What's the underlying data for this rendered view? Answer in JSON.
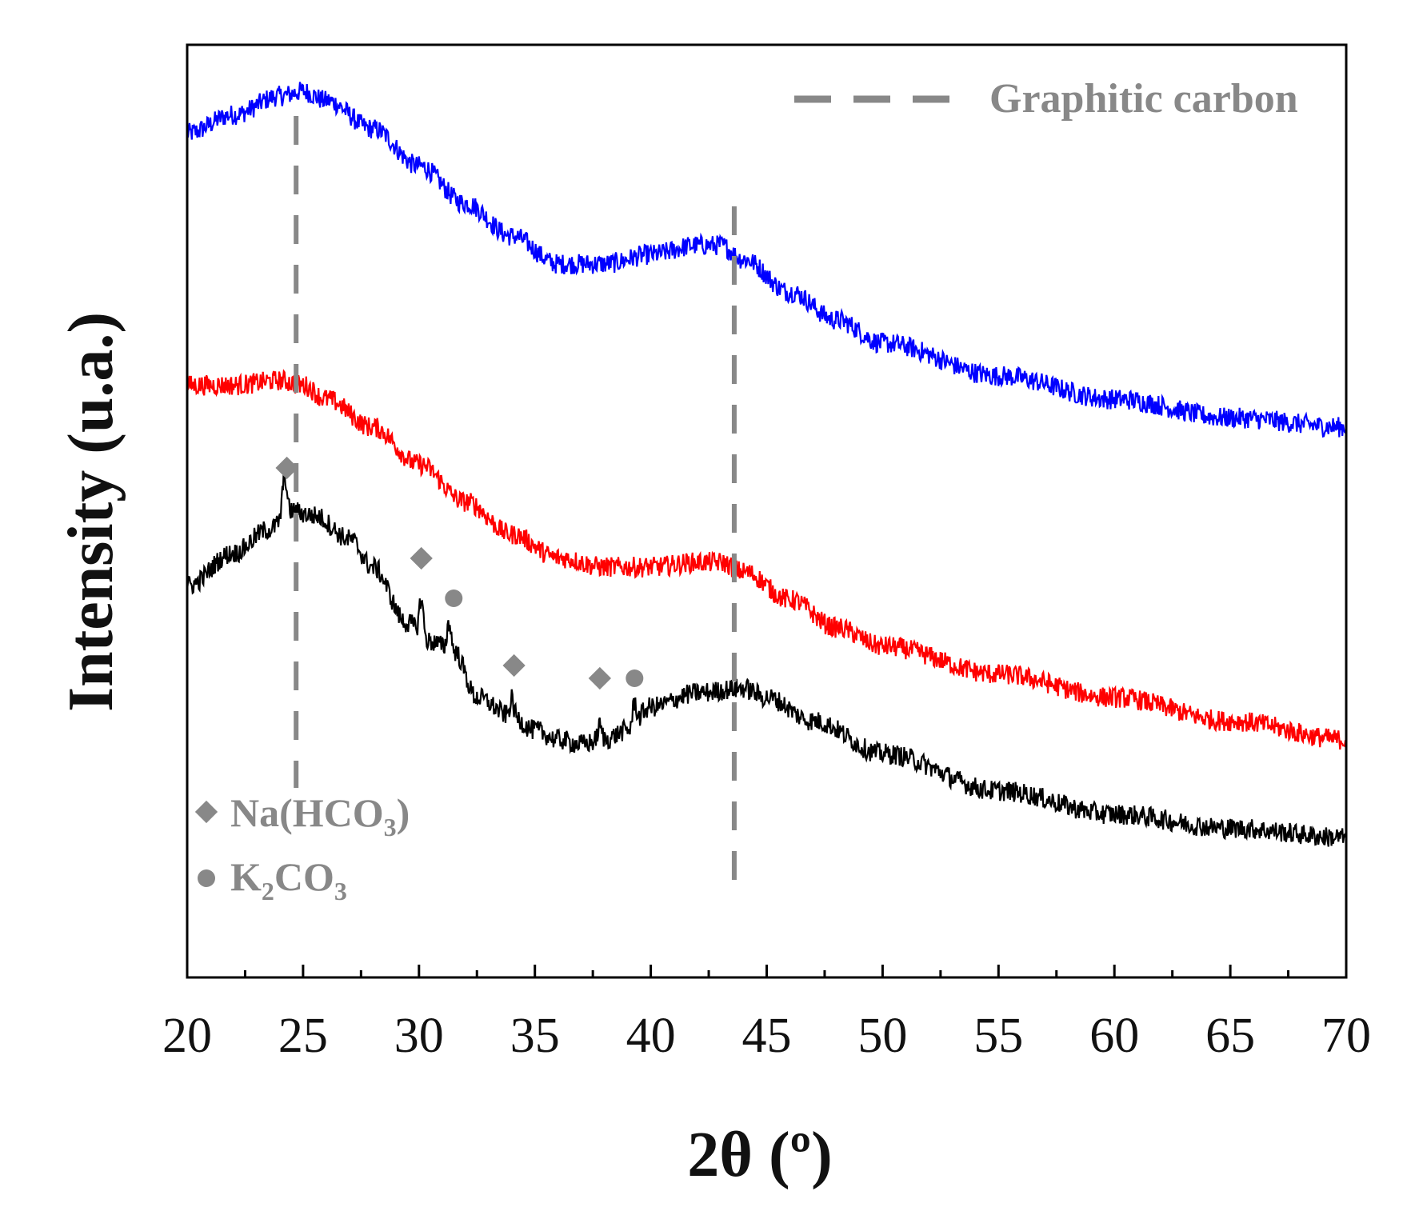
{
  "chart_data": {
    "type": "line",
    "title": "",
    "xlabel": "2θ (º)",
    "ylabel": "Intensity (u.a.)",
    "xlim": [
      20,
      70
    ],
    "xticks": [
      20,
      25,
      30,
      35,
      40,
      45,
      50,
      55,
      60,
      65,
      70
    ],
    "yticks_shown": false,
    "grid": false,
    "series": [
      {
        "color": "#0000ff",
        "points": [
          [
            20,
            0.905
          ],
          [
            22,
            0.925
          ],
          [
            24,
            0.945
          ],
          [
            25,
            0.95
          ],
          [
            26,
            0.94
          ],
          [
            28,
            0.91
          ],
          [
            30,
            0.87
          ],
          [
            32,
            0.83
          ],
          [
            34,
            0.795
          ],
          [
            36,
            0.765
          ],
          [
            38,
            0.765
          ],
          [
            40,
            0.775
          ],
          [
            42,
            0.785
          ],
          [
            43,
            0.785
          ],
          [
            44,
            0.77
          ],
          [
            46,
            0.735
          ],
          [
            48,
            0.705
          ],
          [
            50,
            0.68
          ],
          [
            55,
            0.645
          ],
          [
            60,
            0.62
          ],
          [
            65,
            0.6
          ],
          [
            70,
            0.59
          ]
        ]
      },
      {
        "color": "#ff0000",
        "points": [
          [
            20,
            0.635
          ],
          [
            22,
            0.635
          ],
          [
            24,
            0.64
          ],
          [
            25,
            0.635
          ],
          [
            26,
            0.62
          ],
          [
            28,
            0.59
          ],
          [
            30,
            0.55
          ],
          [
            32,
            0.51
          ],
          [
            34,
            0.475
          ],
          [
            36,
            0.45
          ],
          [
            38,
            0.44
          ],
          [
            40,
            0.44
          ],
          [
            42,
            0.445
          ],
          [
            43,
            0.445
          ],
          [
            44,
            0.435
          ],
          [
            46,
            0.405
          ],
          [
            48,
            0.375
          ],
          [
            50,
            0.355
          ],
          [
            55,
            0.325
          ],
          [
            60,
            0.3
          ],
          [
            65,
            0.275
          ],
          [
            70,
            0.255
          ]
        ]
      },
      {
        "color": "#000000",
        "points": [
          [
            20,
            0.42
          ],
          [
            22,
            0.455
          ],
          [
            23.5,
            0.48
          ],
          [
            24.5,
            0.5
          ],
          [
            25.5,
            0.495
          ],
          [
            27,
            0.47
          ],
          [
            28,
            0.44
          ],
          [
            29.5,
            0.38
          ],
          [
            30.5,
            0.36
          ],
          [
            31.5,
            0.35
          ],
          [
            32.5,
            0.3
          ],
          [
            34,
            0.28
          ],
          [
            35,
            0.265
          ],
          [
            36,
            0.255
          ],
          [
            37,
            0.25
          ],
          [
            38,
            0.255
          ],
          [
            39,
            0.265
          ],
          [
            40,
            0.29
          ],
          [
            42,
            0.305
          ],
          [
            44,
            0.31
          ],
          [
            45,
            0.3
          ],
          [
            47,
            0.275
          ],
          [
            50,
            0.24
          ],
          [
            55,
            0.2
          ],
          [
            60,
            0.175
          ],
          [
            65,
            0.16
          ],
          [
            70,
            0.15
          ]
        ],
        "peaks": [
          [
            24.2,
            0.045
          ],
          [
            30.1,
            0.04
          ],
          [
            31.3,
            0.03
          ],
          [
            34.0,
            0.018
          ],
          [
            37.8,
            0.015
          ],
          [
            39.3,
            0.025
          ]
        ]
      }
    ],
    "reference_lines": {
      "label": "Graphitic carbon",
      "color": "#888888",
      "x": [
        24.7,
        43.6
      ],
      "legend_placement": "top-right"
    },
    "phase_markers": [
      {
        "symbol": "diamond",
        "phase": "Na(HCO3)",
        "x": 24.3
      },
      {
        "symbol": "diamond",
        "phase": "Na(HCO3)",
        "x": 30.1
      },
      {
        "symbol": "circle",
        "phase": "K2CO3",
        "x": 31.5
      },
      {
        "symbol": "diamond",
        "phase": "Na(HCO3)",
        "x": 34.1
      },
      {
        "symbol": "diamond",
        "phase": "Na(HCO3)",
        "x": 37.8
      },
      {
        "symbol": "circle",
        "phase": "K2CO3",
        "x": 39.3
      }
    ],
    "marker_legend": [
      {
        "symbol": "diamond",
        "label_main": "Na(HCO",
        "label_sub": "3",
        "label_tail": ")"
      },
      {
        "symbol": "circle",
        "label_main": "K",
        "label_sub": "2",
        "label_tail": "CO",
        "label_sub2": "3"
      }
    ],
    "marker_color": "#888888",
    "legend_placement": "bottom-left"
  }
}
